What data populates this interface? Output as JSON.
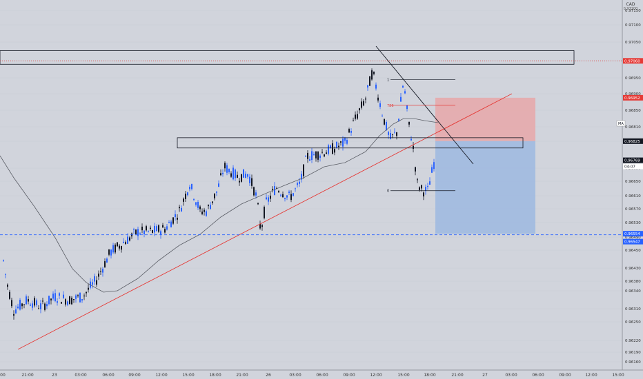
{
  "chart_data": {
    "type": "candlestick",
    "symbol_label": "CAD",
    "price_axis": {
      "ylim": [
        0.96155,
        0.97222
      ],
      "ticks": [
        "0.97150",
        "0.97100",
        "0.97050",
        "0.97000",
        "0.96950",
        "0.96900",
        "0.96850",
        "0.96810",
        "0.96730",
        "0.96690",
        "0.96650",
        "0.96610",
        "0.96570",
        "0.96530",
        "0.96490",
        "0.96450",
        "0.96430",
        "0.96380",
        "0.96340",
        "0.96310",
        "0.96250",
        "0.96220",
        "0.96190",
        "0.96160"
      ],
      "top_label": "0.97200"
    },
    "time_axis": {
      "labels": [
        "00",
        "21:00",
        "23",
        "03:00",
        "06:00",
        "09:00",
        "12:00",
        "15:00",
        "18:00",
        "21:00",
        "26",
        "03:00",
        "06:00",
        "09:00",
        "12:00",
        "15:00",
        "18:00",
        "21:00",
        "27",
        "03:00",
        "06:00",
        "09:00",
        "12:00",
        "15:00"
      ]
    },
    "price_tags": [
      {
        "value": "0.97060",
        "color": "#e53935"
      },
      {
        "value": "0.96952",
        "color": "#e53935"
      },
      {
        "value": "0.96825",
        "color": "#131722"
      },
      {
        "value": "0.96769",
        "color": "#131722"
      },
      {
        "value": "04:07",
        "color": "#131722"
      },
      {
        "value": "0.96554",
        "color": "#2962ff"
      },
      {
        "value": "0.96547",
        "color": "#2962ff"
      }
    ],
    "ma_tag": "MA",
    "fib_labels": [
      "1",
      "786",
      "0"
    ],
    "fib_levels": [
      {
        "label": "1",
        "price": 0.97005
      },
      {
        "label": "786",
        "price": 0.9693
      },
      {
        "label": "0",
        "price": 0.9668
      }
    ],
    "trade": {
      "entry": 0.96825,
      "stop": 0.96952,
      "target": 0.96554
    },
    "horizontal_lines": [
      {
        "price": 0.9706,
        "style": "dotted",
        "color": "#e53935"
      },
      {
        "price": 0.96551,
        "style": "dashed",
        "color": "#2962ff"
      }
    ],
    "zones": [
      {
        "from_price": 0.9709,
        "to_price": 0.9705
      },
      {
        "from_price": 0.96835,
        "to_price": 0.96805
      }
    ],
    "colors": {
      "up": "#2962ff",
      "down": "#131722",
      "ma": "#5b5e66",
      "trend": "#e53935",
      "stop_zone": "#e8a7a9",
      "target_zone": "#9db8e0"
    }
  }
}
